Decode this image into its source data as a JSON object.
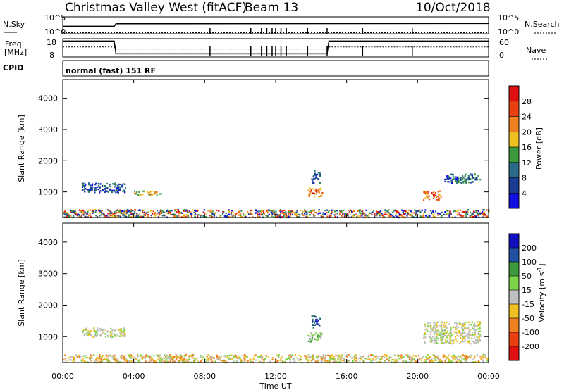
{
  "header": {
    "station_title": "Christmas Valley West (fitACF)",
    "beam": "Beam 13",
    "date": "10/Oct/2018"
  },
  "noise_panel": {
    "left_label": "N.Sky",
    "right_label": "N.Search",
    "left_ticks": [
      "10^5",
      "10^0"
    ],
    "right_ticks": [
      "10^5",
      "10^0"
    ]
  },
  "freq_panel": {
    "left_label_1": "Freq.",
    "left_label_2": "[MHz]",
    "right_label": "Nave",
    "left_ticks": [
      "18",
      "8"
    ],
    "right_ticks": [
      "60",
      "0"
    ]
  },
  "cpid_panel": {
    "label": "CPID",
    "mode": "normal (fast) 151 RF"
  },
  "x_axis": {
    "label": "Time UT",
    "ticks": [
      "00:00",
      "04:00",
      "08:00",
      "12:00",
      "16:00",
      "20:00",
      "00:00"
    ]
  },
  "colors": {
    "blue": "#1010e0",
    "darkblue": "#1c3c94",
    "teal": "#2a7a6a",
    "green": "#3c9a3c",
    "lgreen": "#7ed448",
    "grey": "#c0c0c0",
    "yellow": "#f0c020",
    "orange": "#f08020",
    "dorange": "#e85010",
    "red": "#e01010"
  },
  "chart_data": [
    {
      "type": "line",
      "name": "noise",
      "x_range_hours": [
        0,
        24
      ],
      "y_log": true,
      "series": [
        {
          "name": "N.Sky",
          "points": [
            [
              0,
              2.2
            ],
            [
              2.9,
              2.2
            ],
            [
              3.0,
              3.0
            ],
            [
              24,
              3.1
            ]
          ]
        },
        {
          "name": "N.Search",
          "points": [
            [
              0,
              0.1
            ],
            [
              24,
              0.1
            ]
          ]
        }
      ]
    },
    {
      "type": "line",
      "name": "frequency",
      "x_range_hours": [
        0,
        24
      ],
      "ylim": [
        8,
        18
      ],
      "series": [
        {
          "name": "Freq.",
          "points": [
            [
              0,
              17
            ],
            [
              2.9,
              17
            ],
            [
              3.0,
              9.5
            ],
            [
              14.9,
              9.5
            ],
            [
              15.0,
              17
            ],
            [
              24,
              17
            ]
          ]
        },
        {
          "name": "Nave",
          "points": [
            [
              0,
              33
            ],
            [
              2.9,
              33
            ],
            [
              3.0,
              26
            ],
            [
              14.9,
              26
            ],
            [
              15.0,
              33
            ],
            [
              24,
              33
            ]
          ]
        }
      ]
    },
    {
      "type": "heatmap",
      "name": "power",
      "ylabel": "Slant Range [km]",
      "yticks": [
        1000,
        2000,
        3000,
        4000
      ],
      "ylim": [
        180,
        4600
      ],
      "xlim": [
        0,
        24
      ],
      "colorbar": {
        "label": "Power [dB]",
        "ticks": [
          "28",
          "24",
          "20",
          "16",
          "12",
          "8",
          "4"
        ],
        "stops": [
          "#e01010",
          "#e84010",
          "#f08020",
          "#f0c020",
          "#3c9a3c",
          "#2a6a8a",
          "#1c3c94",
          "#1010e0"
        ]
      },
      "features": [
        {
          "t0": 0,
          "t1": 24,
          "r0": 200,
          "r1": 450,
          "level": "mixed"
        },
        {
          "t0": 1.0,
          "t1": 3.5,
          "r0": 1000,
          "r1": 1300,
          "level": "blue"
        },
        {
          "t0": 4.0,
          "t1": 5.5,
          "r0": 900,
          "r1": 1050,
          "level": "yellow"
        },
        {
          "t0": 13.8,
          "t1": 14.6,
          "r0": 850,
          "r1": 1150,
          "level": "red"
        },
        {
          "t0": 14.0,
          "t1": 14.5,
          "r0": 1300,
          "r1": 1700,
          "level": "blue"
        },
        {
          "t0": 20.3,
          "t1": 21.3,
          "r0": 750,
          "r1": 1050,
          "level": "red"
        },
        {
          "t0": 21.5,
          "t1": 23.5,
          "r0": 1300,
          "r1": 1600,
          "level": "teal"
        }
      ]
    },
    {
      "type": "heatmap",
      "name": "velocity",
      "ylabel": "Slant Range [km]",
      "yticks": [
        1000,
        2000,
        3000,
        4000
      ],
      "ylim": [
        180,
        4600
      ],
      "xlim": [
        0,
        24
      ],
      "colorbar": {
        "label": "Velocity [m s^-1]",
        "ticks": [
          "200",
          "100",
          "50",
          "15",
          "-15",
          "-50",
          "-100",
          "-200"
        ],
        "stops": [
          "#1010c0",
          "#2050a0",
          "#3c9a3c",
          "#7ed448",
          "#c0c0c0",
          "#f0c020",
          "#f08020",
          "#e84010",
          "#e01010"
        ]
      },
      "features": [
        {
          "t0": 0,
          "t1": 24,
          "r0": 200,
          "r1": 450,
          "level": "yellow"
        },
        {
          "t0": 1.0,
          "t1": 3.5,
          "r0": 1000,
          "r1": 1300,
          "level": "grey"
        },
        {
          "t0": 13.8,
          "t1": 14.6,
          "r0": 850,
          "r1": 1150,
          "level": "lgreen"
        },
        {
          "t0": 14.0,
          "t1": 14.5,
          "r0": 1300,
          "r1": 1700,
          "level": "blue"
        },
        {
          "t0": 20.3,
          "t1": 23.5,
          "r0": 800,
          "r1": 1500,
          "level": "grey"
        }
      ]
    }
  ]
}
